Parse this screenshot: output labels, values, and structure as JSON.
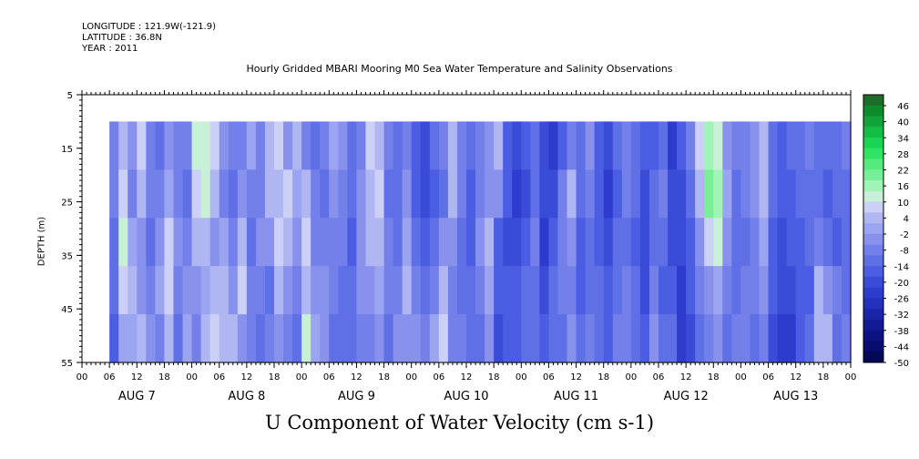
{
  "header": {
    "longitude": "LONGITUDE : 121.9W(-121.9)",
    "latitude": "LATITUDE : 36.8N",
    "year": "YEAR : 2011"
  },
  "chart_data": {
    "type": "heatmap",
    "title": "Hourly Gridded MBARI Mooring M0 Sea Water Temperature and Salinity Observations",
    "xlabel": "U Component of Water Velocity (cm s-1)",
    "ylabel": "DEPTH (m)",
    "y_ticks": [
      5,
      15,
      25,
      35,
      45,
      55
    ],
    "ylim": [
      5,
      55
    ],
    "y_reversed": true,
    "x_hour_labels": [
      "00",
      "06",
      "12",
      "18",
      "00",
      "06",
      "12",
      "18",
      "00",
      "06",
      "12",
      "18",
      "00",
      "06",
      "12",
      "18",
      "00",
      "06",
      "12",
      "18",
      "00",
      "06",
      "12",
      "18",
      "00",
      "06",
      "12",
      "18",
      "00"
    ],
    "x_day_labels": [
      "AUG  7",
      "AUG  8",
      "AUG  9",
      "AUG 10",
      "AUG 11",
      "AUG 12",
      "AUG 13"
    ],
    "x_range_hours": [
      0,
      168
    ],
    "data_hours": [
      6,
      170
    ],
    "data_depth_range": [
      10,
      55
    ],
    "colorbar_labels": [
      "46",
      "40",
      "34",
      "28",
      "22",
      "16",
      "10",
      "4",
      "-2",
      "-8",
      "-14",
      "-20",
      "-26",
      "-32",
      "-38",
      "-44",
      "-50"
    ],
    "colorbar_range": [
      -50,
      50
    ],
    "colorbar_levels": [
      "#1e6b2a",
      "#0c8a2c",
      "#10a33a",
      "#14bd46",
      "#1ad555",
      "#2ee462",
      "#55ea7d",
      "#77ee97",
      "#9ff5b6",
      "#c7f0d6",
      "#cdd0f6",
      "#b0b6f2",
      "#9ba4f0",
      "#8892ec",
      "#7480ea",
      "#5f6fe6",
      "#4b5de2",
      "#3a4bd8",
      "#2d3ccc",
      "#2230bd",
      "#1a24a8",
      "#121a95",
      "#0c1282",
      "#080c6e",
      "#050855"
    ],
    "columns": [
      {
        "h": 6,
        "v": [
          -6,
          -8,
          -10,
          -12,
          -14
        ]
      },
      {
        "h": 8,
        "v": [
          6,
          10,
          12,
          8,
          2
        ]
      },
      {
        "h": 10,
        "v": [
          -4,
          -6,
          2,
          4,
          0
        ]
      },
      {
        "h": 12,
        "v": [
          8,
          4,
          -4,
          -2,
          6
        ]
      },
      {
        "h": 14,
        "v": [
          -6,
          -8,
          -10,
          -6,
          -4
        ]
      },
      {
        "h": 16,
        "v": [
          -10,
          -6,
          -2,
          2,
          -6
        ]
      },
      {
        "h": 18,
        "v": [
          -4,
          2,
          8,
          10,
          4
        ]
      },
      {
        "h": 20,
        "v": [
          -8,
          -6,
          -2,
          -6,
          -10
        ]
      },
      {
        "h": 22,
        "v": [
          -8,
          -10,
          -6,
          -2,
          2
        ]
      },
      {
        "h": 24,
        "v": [
          12,
          10,
          6,
          -4,
          -8
        ]
      },
      {
        "h": 26,
        "v": [
          14,
          12,
          4,
          2,
          6
        ]
      },
      {
        "h": 28,
        "v": [
          10,
          6,
          -2,
          4,
          8
        ]
      },
      {
        "h": 30,
        "v": [
          -4,
          -6,
          2,
          6,
          4
        ]
      },
      {
        "h": 32,
        "v": [
          -8,
          -10,
          -6,
          -2,
          6
        ]
      },
      {
        "h": 34,
        "v": [
          -6,
          -2,
          4,
          8,
          -4
        ]
      },
      {
        "h": 36,
        "v": [
          2,
          -6,
          -10,
          -8,
          -6
        ]
      },
      {
        "h": 38,
        "v": [
          -6,
          -8,
          -4,
          -8,
          -10
        ]
      },
      {
        "h": 40,
        "v": [
          4,
          6,
          -4,
          -10,
          -8
        ]
      },
      {
        "h": 42,
        "v": [
          10,
          6,
          8,
          4,
          -2
        ]
      },
      {
        "h": 44,
        "v": [
          -4,
          8,
          4,
          -2,
          -8
        ]
      },
      {
        "h": 46,
        "v": [
          4,
          2,
          -4,
          -6,
          -10
        ]
      },
      {
        "h": 48,
        "v": [
          -8,
          4,
          8,
          6,
          14
        ]
      },
      {
        "h": 50,
        "v": [
          -10,
          -8,
          -6,
          -4,
          2
        ]
      },
      {
        "h": 52,
        "v": [
          -6,
          -10,
          -8,
          -4,
          -2
        ]
      },
      {
        "h": 54,
        "v": [
          2,
          -2,
          -6,
          -8,
          -10
        ]
      },
      {
        "h": 56,
        "v": [
          -4,
          -6,
          -8,
          -10,
          -12
        ]
      },
      {
        "h": 58,
        "v": [
          -10,
          -12,
          -14,
          -12,
          -10
        ]
      },
      {
        "h": 60,
        "v": [
          -6,
          -4,
          -2,
          -4,
          -8
        ]
      },
      {
        "h": 62,
        "v": [
          8,
          6,
          4,
          -2,
          -6
        ]
      },
      {
        "h": 64,
        "v": [
          4,
          8,
          6,
          2,
          -2
        ]
      },
      {
        "h": 66,
        "v": [
          -8,
          -10,
          -6,
          -8,
          -10
        ]
      },
      {
        "h": 68,
        "v": [
          -10,
          -12,
          -10,
          -8,
          -4
        ]
      },
      {
        "h": 70,
        "v": [
          -6,
          -4,
          2,
          6,
          -2
        ]
      },
      {
        "h": 72,
        "v": [
          -14,
          -16,
          -12,
          -8,
          -4
        ]
      },
      {
        "h": 74,
        "v": [
          -18,
          -20,
          -16,
          -10,
          -6
        ]
      },
      {
        "h": 76,
        "v": [
          -12,
          -14,
          -10,
          -6,
          2
        ]
      },
      {
        "h": 78,
        "v": [
          -8,
          -10,
          -4,
          6,
          8
        ]
      },
      {
        "h": 80,
        "v": [
          6,
          4,
          -4,
          -8,
          -6
        ]
      },
      {
        "h": 82,
        "v": [
          -6,
          -8,
          -12,
          -10,
          -8
        ]
      },
      {
        "h": 84,
        "v": [
          -10,
          -14,
          -16,
          -12,
          -10
        ]
      },
      {
        "h": 86,
        "v": [
          -8,
          -6,
          -4,
          -8,
          -12
        ]
      },
      {
        "h": 88,
        "v": [
          -4,
          -2,
          4,
          2,
          -4
        ]
      },
      {
        "h": 90,
        "v": [
          4,
          -4,
          -14,
          -16,
          -18
        ]
      },
      {
        "h": 92,
        "v": [
          -14,
          -16,
          -18,
          -16,
          -14
        ]
      },
      {
        "h": 94,
        "v": [
          -20,
          -22,
          -18,
          -14,
          -16
        ]
      },
      {
        "h": 96,
        "v": [
          -16,
          -18,
          -16,
          -12,
          -10
        ]
      },
      {
        "h": 98,
        "v": [
          -12,
          -10,
          -8,
          -10,
          -12
        ]
      },
      {
        "h": 100,
        "v": [
          -18,
          -20,
          -22,
          -18,
          -14
        ]
      },
      {
        "h": 102,
        "v": [
          -24,
          -20,
          -16,
          -12,
          -10
        ]
      },
      {
        "h": 104,
        "v": [
          -14,
          -8,
          -6,
          -8,
          -12
        ]
      },
      {
        "h": 106,
        "v": [
          -6,
          4,
          -2,
          -6,
          -4
        ]
      },
      {
        "h": 108,
        "v": [
          -10,
          -12,
          -16,
          -14,
          -12
        ]
      },
      {
        "h": 110,
        "v": [
          -4,
          -8,
          -12,
          -10,
          -6
        ]
      },
      {
        "h": 112,
        "v": [
          -14,
          -16,
          -14,
          -12,
          -10
        ]
      },
      {
        "h": 114,
        "v": [
          -18,
          -22,
          -20,
          -16,
          -14
        ]
      },
      {
        "h": 116,
        "v": [
          -12,
          -14,
          -12,
          -10,
          -8
        ]
      },
      {
        "h": 118,
        "v": [
          -6,
          -8,
          -10,
          -8,
          -6
        ]
      },
      {
        "h": 120,
        "v": [
          -10,
          -12,
          -14,
          -12,
          -10
        ]
      },
      {
        "h": 122,
        "v": [
          -16,
          -18,
          -20,
          -18,
          -14
        ]
      },
      {
        "h": 124,
        "v": [
          -14,
          -12,
          -10,
          -8,
          -4
        ]
      },
      {
        "h": 126,
        "v": [
          -10,
          -8,
          -12,
          -14,
          -10
        ]
      },
      {
        "h": 128,
        "v": [
          -22,
          -20,
          -18,
          -16,
          -12
        ]
      },
      {
        "h": 130,
        "v": [
          -16,
          -18,
          -20,
          -22,
          -24
        ]
      },
      {
        "h": 132,
        "v": [
          -8,
          -10,
          -14,
          -16,
          -18
        ]
      },
      {
        "h": 134,
        "v": [
          8,
          4,
          -4,
          -8,
          -10
        ]
      },
      {
        "h": 136,
        "v": [
          16,
          20,
          10,
          -2,
          -8
        ]
      },
      {
        "h": 138,
        "v": [
          14,
          18,
          12,
          2,
          -4
        ]
      },
      {
        "h": 140,
        "v": [
          -4,
          2,
          -2,
          -8,
          -10
        ]
      },
      {
        "h": 142,
        "v": [
          -8,
          -10,
          -12,
          -10,
          -8
        ]
      },
      {
        "h": 144,
        "v": [
          -6,
          -8,
          -10,
          -8,
          -6
        ]
      },
      {
        "h": 146,
        "v": [
          -4,
          -2,
          -6,
          -8,
          -10
        ]
      },
      {
        "h": 148,
        "v": [
          4,
          6,
          2,
          -4,
          -8
        ]
      },
      {
        "h": 150,
        "v": [
          -10,
          -12,
          -14,
          -16,
          -20
        ]
      },
      {
        "h": 152,
        "v": [
          -14,
          -16,
          -18,
          -20,
          -24
        ]
      },
      {
        "h": 154,
        "v": [
          -12,
          -14,
          -16,
          -18,
          -22
        ]
      },
      {
        "h": 156,
        "v": [
          -10,
          -12,
          -14,
          -16,
          -14
        ]
      },
      {
        "h": 158,
        "v": [
          -8,
          -10,
          -12,
          -14,
          -10
        ]
      },
      {
        "h": 160,
        "v": [
          -10,
          -12,
          -8,
          4,
          6
        ]
      },
      {
        "h": 162,
        "v": [
          -12,
          -14,
          -10,
          -2,
          4
        ]
      },
      {
        "h": 164,
        "v": [
          -10,
          -12,
          -14,
          -6,
          -10
        ]
      },
      {
        "h": 166,
        "v": [
          -8,
          -10,
          -12,
          -10,
          -8
        ]
      },
      {
        "h": 168,
        "v": [
          -8,
          -10,
          -12,
          -10,
          -8
        ]
      }
    ]
  }
}
